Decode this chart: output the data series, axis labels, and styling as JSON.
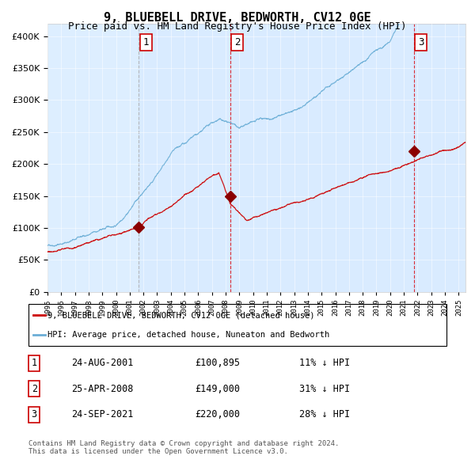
{
  "title": "9, BLUEBELL DRIVE, BEDWORTH, CV12 0GE",
  "subtitle": "Price paid vs. HM Land Registry's House Price Index (HPI)",
  "hpi_color": "#6baed6",
  "price_color": "#cc0000",
  "background_color": "#ffffff",
  "chart_bg_color": "#ddeeff",
  "ylim": [
    0,
    420000
  ],
  "yticks": [
    0,
    50000,
    100000,
    150000,
    200000,
    250000,
    300000,
    350000,
    400000
  ],
  "sale_dates": [
    "2001-08-24",
    "2008-04-25",
    "2021-09-24"
  ],
  "sale_prices": [
    100895,
    149000,
    220000
  ],
  "sale_years": [
    2001.65,
    2008.32,
    2021.73
  ],
  "sale_labels": [
    "1",
    "2",
    "3"
  ],
  "vline_colors": [
    "#aaaaaa",
    "#dd0000",
    "#dd0000"
  ],
  "vline_styles": [
    "dashed",
    "dashed",
    "dashed"
  ],
  "legend_line1": "9, BLUEBELL DRIVE, BEDWORTH, CV12 0GE (detached house)",
  "legend_line2": "HPI: Average price, detached house, Nuneaton and Bedworth",
  "table_entries": [
    {
      "num": "1",
      "date": "24-AUG-2001",
      "price": "£100,895",
      "pct": "11% ↓ HPI"
    },
    {
      "num": "2",
      "date": "25-APR-2008",
      "price": "£149,000",
      "pct": "31% ↓ HPI"
    },
    {
      "num": "3",
      "date": "24-SEP-2021",
      "price": "£220,000",
      "pct": "28% ↓ HPI"
    }
  ],
  "footnote": "Contains HM Land Registry data © Crown copyright and database right 2024.\nThis data is licensed under the Open Government Licence v3.0.",
  "xstart": 1995.0,
  "xend": 2025.5
}
